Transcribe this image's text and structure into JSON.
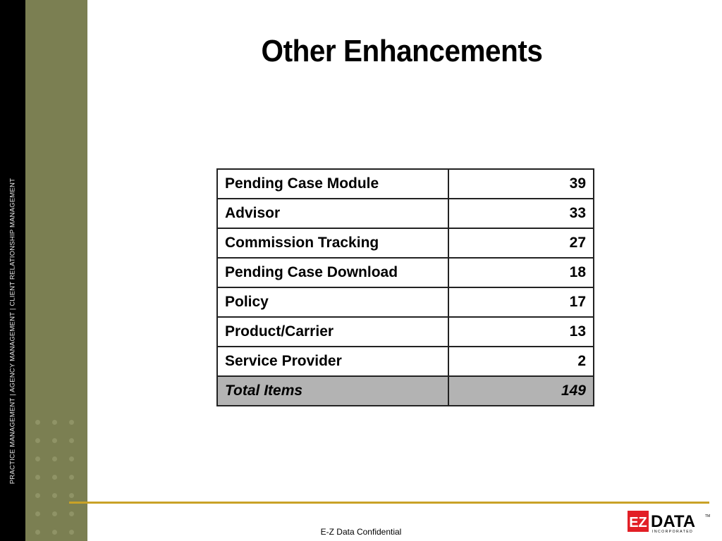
{
  "sidebar": {
    "tagline": "PRACTICE MANAGEMENT | AGENCY MANAGEMENT | CLIENT RELATIONSHIP MANAGEMENT",
    "dots": [
      "",
      "",
      "",
      "",
      "",
      "",
      "",
      "",
      "",
      "",
      "",
      "",
      "",
      "",
      "",
      "",
      "",
      "",
      "",
      "",
      ""
    ]
  },
  "slide": {
    "title": "Other Enhancements"
  },
  "table": {
    "rows": [
      {
        "label": "Pending Case Module",
        "value": "39"
      },
      {
        "label": "Advisor",
        "value": "33"
      },
      {
        "label": "Commission Tracking",
        "value": "27"
      },
      {
        "label": "Pending Case Download",
        "value": "18"
      },
      {
        "label": "Policy",
        "value": "17"
      },
      {
        "label": "Product/Carrier",
        "value": "13"
      },
      {
        "label": "Service Provider",
        "value": "2"
      }
    ],
    "total": {
      "label": "Total Items",
      "value": "149"
    }
  },
  "footer": {
    "confidential": "E-Z Data Confidential",
    "logo": {
      "mark": "EZ",
      "word": "DATA",
      "sub": "INCORPORATED",
      "tm": "TM",
      "brand_color": "#e21f26",
      "accent_line_color": "#c9a227"
    }
  }
}
